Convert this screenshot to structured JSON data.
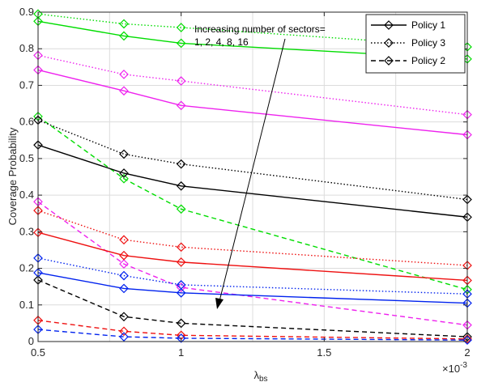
{
  "chart_data": {
    "type": "line",
    "xlabel": "λ",
    "xlabel_sub": "bs",
    "ylabel": "Coverage Probability",
    "xlim": [
      0.5,
      2
    ],
    "ylim": [
      0,
      0.9
    ],
    "xticks": [
      "0.5",
      "1",
      "1.5",
      "2"
    ],
    "yticks": [
      "0",
      "0.1",
      "0.2",
      "0.3",
      "0.4",
      "0.5",
      "0.6",
      "0.7",
      "0.8",
      "0.9"
    ],
    "x_exponent": "×10",
    "x_exponent_power": "-3",
    "grid": true,
    "legend_position": "top-right",
    "legend": [
      {
        "label": "Policy 1",
        "dash": "solid"
      },
      {
        "label": "Policy 3",
        "dash": "dotted"
      },
      {
        "label": "Policy 2",
        "dash": "dashed"
      }
    ],
    "annotation": {
      "line1": "Increasing number of sectors=",
      "line2": "1, 2, 4, 8, 16"
    },
    "x": [
      0.5,
      0.8,
      1.0,
      2.0
    ],
    "series": [
      {
        "color": "#00dd00",
        "dash": "solid",
        "values": [
          0.875,
          0.835,
          0.815,
          0.772
        ]
      },
      {
        "color": "#00dd00",
        "dash": "dotted",
        "values": [
          0.895,
          0.868,
          0.858,
          0.805
        ]
      },
      {
        "color": "#00dd00",
        "dash": "dashed",
        "values": [
          0.615,
          0.445,
          0.362,
          0.142
        ]
      },
      {
        "color": "#ee22ee",
        "dash": "solid",
        "values": [
          0.742,
          0.685,
          0.645,
          0.565
        ]
      },
      {
        "color": "#ee22ee",
        "dash": "dotted",
        "values": [
          0.782,
          0.73,
          0.712,
          0.62
        ]
      },
      {
        "color": "#ee22ee",
        "dash": "dashed",
        "values": [
          0.382,
          0.212,
          0.148,
          0.045
        ]
      },
      {
        "color": "#000000",
        "dash": "solid",
        "values": [
          0.537,
          0.46,
          0.425,
          0.34
        ]
      },
      {
        "color": "#000000",
        "dash": "dotted",
        "values": [
          0.605,
          0.512,
          0.485,
          0.388
        ]
      },
      {
        "color": "#000000",
        "dash": "dashed",
        "values": [
          0.168,
          0.068,
          0.05,
          0.013
        ]
      },
      {
        "color": "#ee1111",
        "dash": "solid",
        "values": [
          0.298,
          0.235,
          0.217,
          0.167
        ]
      },
      {
        "color": "#ee1111",
        "dash": "dotted",
        "values": [
          0.358,
          0.278,
          0.258,
          0.208
        ]
      },
      {
        "color": "#ee1111",
        "dash": "dashed",
        "values": [
          0.058,
          0.028,
          0.017,
          0.007
        ]
      },
      {
        "color": "#0022ee",
        "dash": "solid",
        "values": [
          0.188,
          0.145,
          0.133,
          0.105
        ]
      },
      {
        "color": "#0022ee",
        "dash": "dotted",
        "values": [
          0.228,
          0.18,
          0.155,
          0.13
        ]
      },
      {
        "color": "#0022ee",
        "dash": "dashed",
        "values": [
          0.033,
          0.013,
          0.009,
          0.004
        ]
      }
    ]
  }
}
